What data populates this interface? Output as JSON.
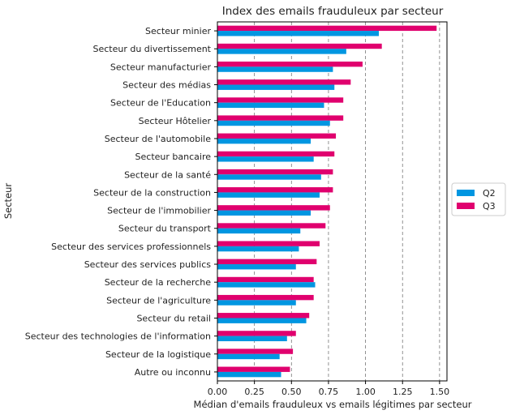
{
  "chart_data": {
    "type": "bar",
    "orientation": "horizontal",
    "title": "Index des emails frauduleux par secteur",
    "xlabel": "Médian d'emails frauduleux vs emails légitimes par secteur",
    "ylabel": "Secteur",
    "xlim": [
      0,
      1.55
    ],
    "xticks": [
      "0.00",
      "0.25",
      "0.50",
      "0.75",
      "1.00",
      "1.25",
      "1.50"
    ],
    "xtick_values": [
      0,
      0.25,
      0.5,
      0.75,
      1.0,
      1.25,
      1.5
    ],
    "grid": "vertical-dashed",
    "legend": "right",
    "categories": [
      "Secteur minier",
      "Secteur du divertissement",
      "Secteur manufacturier",
      "Secteur des médias",
      "Secteur de l'Education",
      "Secteur Hôtelier",
      "Secteur de l'automobile",
      "Secteur bancaire",
      "Secteur de la santé",
      "Secteur de la construction",
      "Secteur de l'immobilier",
      "Secteur du transport",
      "Secteur des services professionnels",
      "Secteur des services publics",
      "Secteur de la recherche",
      "Secteur de l'agriculture",
      "Secteur du retail",
      "Secteur des technologies de l'information",
      "Secteur de la logistique",
      "Autre ou inconnu"
    ],
    "series": [
      {
        "name": "Q2",
        "color": "#0096e1",
        "values": [
          1.09,
          0.87,
          0.78,
          0.79,
          0.72,
          0.76,
          0.63,
          0.65,
          0.7,
          0.69,
          0.63,
          0.56,
          0.55,
          0.53,
          0.66,
          0.53,
          0.6,
          0.47,
          0.42,
          0.43
        ]
      },
      {
        "name": "Q3",
        "color": "#e0006e",
        "values": [
          1.48,
          1.11,
          0.98,
          0.9,
          0.85,
          0.85,
          0.8,
          0.79,
          0.78,
          0.78,
          0.76,
          0.73,
          0.69,
          0.67,
          0.65,
          0.65,
          0.62,
          0.53,
          0.51,
          0.49
        ]
      }
    ]
  }
}
